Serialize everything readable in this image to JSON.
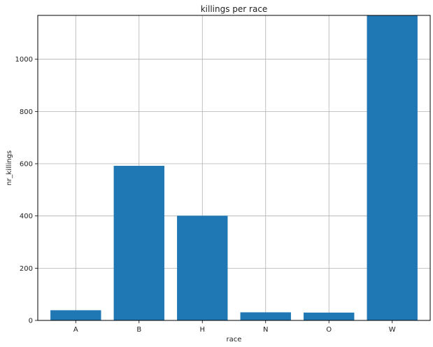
{
  "chart_data": {
    "type": "bar",
    "title": "killings per race",
    "xlabel": "race",
    "ylabel": "nr_killings",
    "categories": [
      "A",
      "B",
      "H",
      "N",
      "O",
      "W"
    ],
    "values": [
      39,
      592,
      401,
      31,
      30,
      1168
    ],
    "ylim": [
      0,
      1168
    ],
    "yticks": [
      0,
      200,
      400,
      600,
      800,
      1000
    ],
    "grid": true,
    "bar_color": "#1f77b4"
  }
}
